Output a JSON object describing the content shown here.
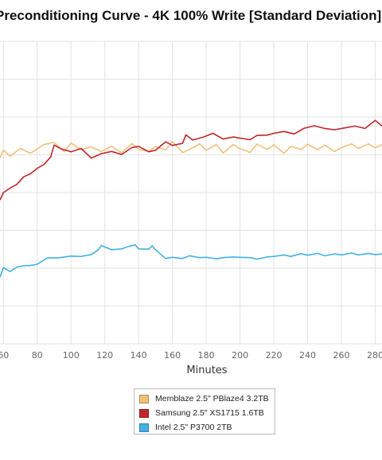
{
  "chart_data": {
    "type": "line",
    "title": "Preconditioning Curve - 4K 100% Write [Standard Deviation]",
    "xlabel": "Minutes",
    "ylabel": "",
    "grid": true,
    "legend_position": "bottom",
    "x_ticks": [
      60,
      80,
      100,
      120,
      140,
      160,
      180,
      200,
      220,
      240,
      260,
      280
    ],
    "xlim": [
      58,
      284
    ],
    "ylim": [
      0,
      100
    ],
    "series": [
      {
        "name": "Memblaze 2.5\" PBlaze4 3.2TB",
        "color": "#f0c07a",
        "x": [
          58,
          60,
          64,
          70,
          76,
          80,
          84,
          90,
          96,
          100,
          106,
          112,
          118,
          124,
          130,
          136,
          140,
          146,
          150,
          156,
          160,
          166,
          170,
          176,
          180,
          186,
          190,
          196,
          200,
          206,
          210,
          216,
          220,
          226,
          230,
          236,
          240,
          246,
          250,
          256,
          260,
          266,
          270,
          276,
          280,
          284
        ],
        "values": [
          61.5,
          64.1,
          62.0,
          64.6,
          63.0,
          64.4,
          65.9,
          66.6,
          63.5,
          66.4,
          64.2,
          65.1,
          63.6,
          65.3,
          63.1,
          66.2,
          64.3,
          63.6,
          65.2,
          64.1,
          66.9,
          63.2,
          64.2,
          66.1,
          64.0,
          65.9,
          63.1,
          65.9,
          64.5,
          63.3,
          66.0,
          64.3,
          65.8,
          63.0,
          65.3,
          64.3,
          66.0,
          64.2,
          65.7,
          63.6,
          64.9,
          66.1,
          64.6,
          66.1,
          64.8,
          65.9
        ]
      },
      {
        "name": "Samsung 2.5\" XS1715 1.6TB",
        "color": "#c0262a",
        "x": [
          58,
          60,
          64,
          68,
          72,
          76,
          80,
          84,
          88,
          90,
          94,
          100,
          106,
          112,
          118,
          124,
          130,
          136,
          140,
          146,
          150,
          156,
          160,
          166,
          168,
          172,
          178,
          184,
          190,
          196,
          200,
          206,
          210,
          216,
          220,
          226,
          232,
          238,
          244,
          250,
          256,
          262,
          268,
          274,
          280,
          284
        ],
        "values": [
          47.5,
          50.0,
          51.5,
          52.7,
          55.2,
          56.2,
          58.0,
          59.3,
          61.8,
          65.7,
          64.5,
          63.5,
          64.6,
          61.4,
          62.9,
          63.6,
          62.6,
          64.9,
          65.3,
          63.5,
          64.0,
          66.8,
          65.6,
          66.3,
          69.1,
          67.4,
          68.3,
          69.6,
          67.7,
          68.4,
          68.0,
          67.5,
          68.9,
          69.0,
          69.6,
          70.2,
          69.4,
          71.3,
          72.1,
          71.2,
          70.8,
          71.4,
          72.0,
          71.2,
          73.9,
          72.0
        ]
      },
      {
        "name": "Intel 2.5\" P3700 2TB",
        "color": "#42b1e5",
        "x": [
          58,
          60,
          64,
          68,
          72,
          76,
          80,
          86,
          92,
          100,
          106,
          112,
          116,
          118,
          124,
          130,
          134,
          138,
          140,
          146,
          148,
          150,
          156,
          160,
          166,
          170,
          176,
          180,
          186,
          190,
          196,
          200,
          206,
          210,
          216,
          220,
          226,
          230,
          236,
          240,
          246,
          250,
          256,
          260,
          266,
          270,
          276,
          280,
          284
        ],
        "values": [
          22.0,
          25.2,
          23.9,
          25.4,
          25.8,
          25.9,
          26.3,
          28.4,
          28.4,
          29.0,
          28.9,
          29.5,
          31.0,
          32.5,
          31.1,
          31.4,
          32.2,
          32.7,
          31.4,
          31.3,
          32.4,
          31.1,
          28.2,
          28.6,
          28.2,
          29.1,
          28.5,
          28.6,
          28.1,
          28.5,
          28.7,
          28.6,
          28.5,
          28.0,
          28.7,
          28.9,
          29.4,
          28.9,
          29.8,
          29.3,
          29.9,
          29.1,
          29.7,
          29.4,
          30.0,
          29.4,
          29.9,
          29.5,
          29.7
        ]
      }
    ]
  }
}
